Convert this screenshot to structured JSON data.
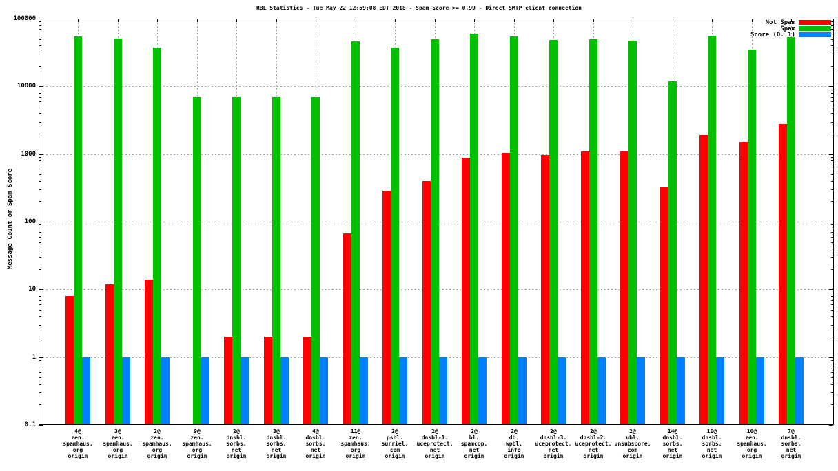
{
  "chart_data": {
    "type": "bar",
    "title": "RBL Statistics - Tue May 22 12:59:08 EDT 2018 - Spam Score >= 0.99 - Direct SMTP client connection",
    "ylabel": "Message Count or Spam Score",
    "xlabel": "",
    "yscale": "log",
    "ylim": [
      0.1,
      100000
    ],
    "grid": true,
    "legend_position": "top-right-inside",
    "ytick_labels": [
      "100000",
      "10000",
      "1000",
      "100",
      "10",
      "1",
      "0.1"
    ],
    "categories": [
      [
        "4@",
        "zen.",
        "spamhaus.",
        "org",
        "origin"
      ],
      [
        "3@",
        "zen.",
        "spamhaus.",
        "org",
        "origin"
      ],
      [
        "2@",
        "zen.",
        "spamhaus.",
        "org",
        "origin"
      ],
      [
        "9@",
        "zen.",
        "spamhaus.",
        "org",
        "origin"
      ],
      [
        "2@",
        "dnsbl.",
        "sorbs.",
        "net",
        "origin"
      ],
      [
        "3@",
        "dnsbl.",
        "sorbs.",
        "net",
        "origin"
      ],
      [
        "4@",
        "dnsbl.",
        "sorbs.",
        "net",
        "origin"
      ],
      [
        "11@",
        "zen.",
        "spamhaus.",
        "org",
        "origin"
      ],
      [
        "2@",
        "psbl.",
        "surriel.",
        "com",
        "origin"
      ],
      [
        "2@",
        "dnsbl-1.",
        "uceprotect.",
        "net",
        "origin"
      ],
      [
        "2@",
        "bl.",
        "spamcop.",
        "net",
        "origin"
      ],
      [
        "2@",
        "db.",
        "wpbl.",
        "info",
        "origin"
      ],
      [
        "2@",
        "dnsbl-3.",
        "uceprotect.",
        "net",
        "origin"
      ],
      [
        "2@",
        "dnsbl-2.",
        "uceprotect.",
        "net",
        "origin"
      ],
      [
        "2@",
        "ubl.",
        "unsubscore.",
        "com",
        "origin"
      ],
      [
        "14@",
        "dnsbl.",
        "sorbs.",
        "net",
        "origin"
      ],
      [
        "10@",
        "dnsbl.",
        "sorbs.",
        "net",
        "origin"
      ],
      [
        "10@",
        "zen.",
        "spamhaus.",
        "org",
        "origin"
      ],
      [
        "7@",
        "dnsbl.",
        "sorbs.",
        "net",
        "origin"
      ]
    ],
    "series": [
      {
        "name": "Not Spam",
        "color": "#ff0000",
        "values": [
          8,
          12,
          14,
          null,
          2,
          2,
          2,
          67,
          290,
          400,
          880,
          1050,
          970,
          1080,
          1100,
          320,
          1900,
          1500,
          2800
        ]
      },
      {
        "name": "Spam",
        "color": "#00c000",
        "values": [
          55000,
          51000,
          37000,
          6900,
          6900,
          6900,
          6900,
          46000,
          37000,
          50000,
          60000,
          54000,
          48000,
          50000,
          47000,
          12000,
          56000,
          35000,
          53000
        ]
      },
      {
        "name": "Score (0..1)",
        "color": "#0080ff",
        "values": [
          1,
          1,
          1,
          1,
          1,
          1,
          1,
          1,
          1,
          1,
          1,
          1,
          1,
          1,
          1,
          1,
          1,
          1,
          1
        ]
      }
    ]
  }
}
